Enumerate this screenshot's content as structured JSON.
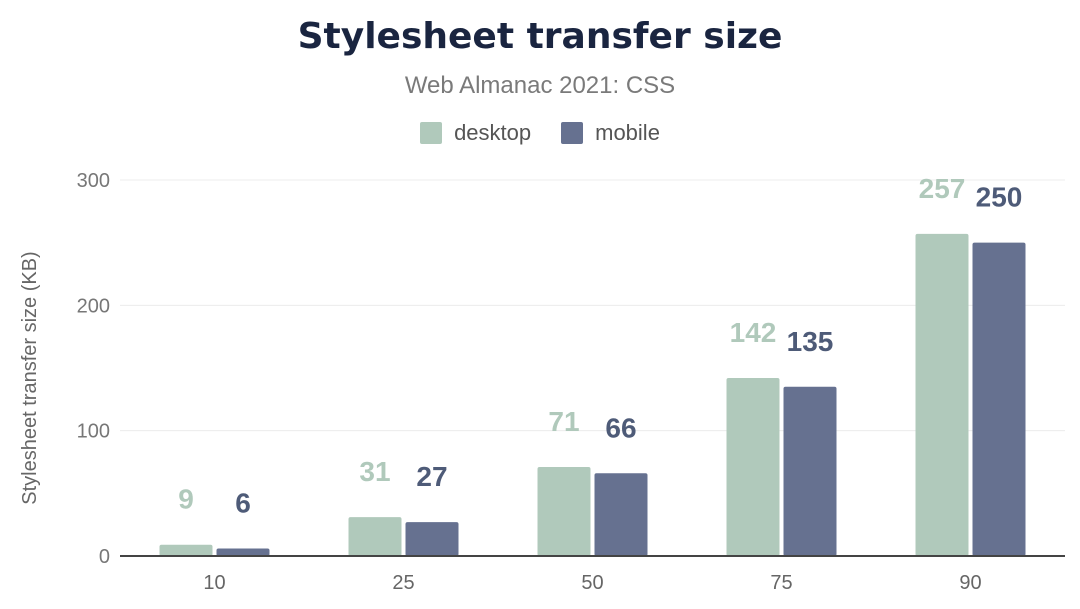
{
  "chart_data": {
    "type": "bar",
    "title": "Stylesheet transfer size",
    "subtitle": "Web Almanac 2021: CSS",
    "xlabel": "",
    "ylabel": "Stylesheet transfer size (KB)",
    "categories": [
      "10",
      "25",
      "50",
      "75",
      "90"
    ],
    "series": [
      {
        "name": "desktop",
        "color": "#b0c9bb",
        "values": [
          9,
          31,
          71,
          142,
          257
        ]
      },
      {
        "name": "mobile",
        "color": "#667190",
        "values": [
          6,
          27,
          66,
          135,
          250
        ]
      }
    ],
    "ylim": [
      0,
      300
    ],
    "yticks": [
      "0",
      "100",
      "200",
      "300"
    ],
    "grid": true,
    "legend_position": "top-center"
  }
}
